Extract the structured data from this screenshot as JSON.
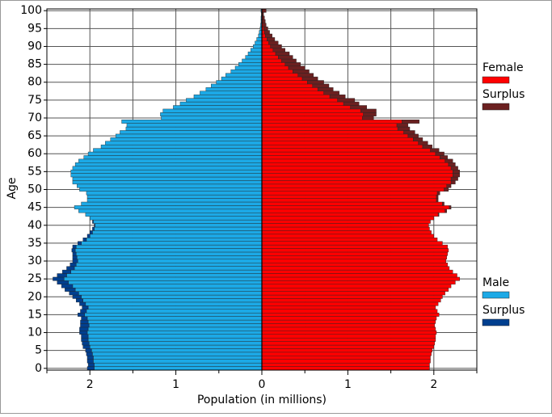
{
  "chart_data": {
    "type": "pyramid",
    "x_label": "Population (in millions)",
    "y_label": "Age",
    "stacked": true,
    "grid": true,
    "xlim": [
      -2.5,
      2.5
    ],
    "xticks": [
      {
        "value": -2,
        "label": "2"
      },
      {
        "value": -1,
        "label": "1"
      },
      0,
      1,
      2
    ],
    "x_minor_ticks": [
      -2.5,
      -1.5,
      -0.5,
      0.5,
      1.5,
      2.5
    ],
    "ylim": [
      -0.5,
      100.5
    ],
    "yticks": [
      0,
      5,
      10,
      15,
      20,
      25,
      30,
      35,
      40,
      45,
      50,
      55,
      60,
      65,
      70,
      75,
      80,
      85,
      90,
      95,
      100
    ],
    "y": [
      0,
      1,
      2,
      3,
      4,
      5,
      6,
      7,
      8,
      9,
      10,
      11,
      12,
      13,
      14,
      15,
      16,
      17,
      18,
      19,
      20,
      21,
      22,
      23,
      24,
      25,
      26,
      27,
      28,
      29,
      30,
      31,
      32,
      33,
      34,
      35,
      36,
      37,
      38,
      39,
      40,
      41,
      42,
      43,
      44,
      45,
      46,
      47,
      48,
      49,
      50,
      51,
      52,
      53,
      54,
      55,
      56,
      57,
      58,
      59,
      60,
      61,
      62,
      63,
      64,
      65,
      66,
      67,
      68,
      69,
      70,
      71,
      72,
      73,
      74,
      75,
      76,
      77,
      78,
      79,
      80,
      81,
      82,
      83,
      84,
      85,
      86,
      87,
      88,
      89,
      90,
      91,
      92,
      93,
      94,
      95,
      96,
      97,
      98,
      99,
      100
    ],
    "series": [
      {
        "name": "Female",
        "color": "#ff0000",
        "values": [
          1.95,
          1.95,
          1.96,
          1.96,
          1.97,
          1.98,
          2.0,
          2.01,
          2.02,
          2.02,
          2.03,
          2.02,
          2.01,
          2.02,
          2.03,
          2.06,
          2.04,
          2.02,
          2.05,
          2.08,
          2.1,
          2.13,
          2.17,
          2.2,
          2.25,
          2.3,
          2.27,
          2.22,
          2.18,
          2.16,
          2.14,
          2.15,
          2.16,
          2.17,
          2.16,
          2.1,
          2.04,
          2.0,
          1.97,
          1.95,
          1.94,
          1.96,
          2.0,
          2.05,
          2.13,
          2.18,
          2.1,
          2.03,
          2.03,
          2.04,
          2.12,
          2.15,
          2.2,
          2.2,
          2.22,
          2.22,
          2.2,
          2.17,
          2.13,
          2.07,
          2.02,
          1.96,
          1.87,
          1.82,
          1.76,
          1.7,
          1.65,
          1.58,
          1.57,
          1.63,
          1.17,
          1.18,
          1.15,
          1.03,
          0.95,
          0.88,
          0.79,
          0.72,
          0.65,
          0.59,
          0.53,
          0.47,
          0.42,
          0.36,
          0.31,
          0.27,
          0.23,
          0.19,
          0.16,
          0.13,
          0.1,
          0.08,
          0.06,
          0.04,
          0.03,
          0.02,
          0.015,
          0.01,
          0.01,
          0.005,
          0.01
        ]
      },
      {
        "name": "Surplus",
        "color": "#6b2020",
        "values": [
          0,
          0,
          0,
          0,
          0,
          0,
          0,
          0,
          0,
          0,
          0,
          0,
          0,
          0,
          0,
          0,
          0,
          0,
          0,
          0,
          0,
          0,
          0,
          0,
          0,
          0,
          0,
          0,
          0,
          0,
          0,
          0,
          0,
          0,
          0,
          0,
          0,
          0,
          0,
          0,
          0,
          0,
          0,
          0.01,
          0.02,
          0.02,
          0.02,
          0.02,
          0.02,
          0.03,
          0.05,
          0.05,
          0.05,
          0.08,
          0.08,
          0.08,
          0.08,
          0.08,
          0.09,
          0.09,
          0.1,
          0.1,
          0.11,
          0.11,
          0.11,
          0.12,
          0.13,
          0.14,
          0.13,
          0.2,
          0.13,
          0.15,
          0.18,
          0.19,
          0.18,
          0.2,
          0.18,
          0.18,
          0.18,
          0.19,
          0.19,
          0.18,
          0.18,
          0.19,
          0.19,
          0.18,
          0.17,
          0.17,
          0.16,
          0.14,
          0.13,
          0.11,
          0.09,
          0.08,
          0.06,
          0.05,
          0.035,
          0.03,
          0.02,
          0.015,
          0.04
        ]
      },
      {
        "name": "Male",
        "color": "#1ca9e6",
        "values": [
          -1.95,
          -1.95,
          -1.96,
          -1.96,
          -1.97,
          -1.98,
          -2.0,
          -2.01,
          -2.02,
          -2.02,
          -2.03,
          -2.02,
          -2.01,
          -2.02,
          -2.03,
          -2.06,
          -2.04,
          -2.02,
          -2.05,
          -2.08,
          -2.1,
          -2.13,
          -2.17,
          -2.2,
          -2.25,
          -2.3,
          -2.27,
          -2.22,
          -2.18,
          -2.16,
          -2.14,
          -2.15,
          -2.16,
          -2.17,
          -2.16,
          -2.1,
          -2.04,
          -2.0,
          -1.97,
          -1.95,
          -1.94,
          -1.96,
          -2.0,
          -2.05,
          -2.13,
          -2.18,
          -2.1,
          -2.03,
          -2.03,
          -2.04,
          -2.12,
          -2.15,
          -2.2,
          -2.2,
          -2.22,
          -2.22,
          -2.2,
          -2.17,
          -2.13,
          -2.07,
          -2.02,
          -1.96,
          -1.87,
          -1.82,
          -1.76,
          -1.7,
          -1.65,
          -1.58,
          -1.57,
          -1.63,
          -1.17,
          -1.18,
          -1.15,
          -1.03,
          -0.95,
          -0.88,
          -0.79,
          -0.72,
          -0.65,
          -0.59,
          -0.53,
          -0.47,
          -0.42,
          -0.36,
          -0.31,
          -0.27,
          -0.23,
          -0.19,
          -0.16,
          -0.13,
          -0.1,
          -0.08,
          -0.06,
          -0.04,
          -0.03,
          -0.02,
          -0.015,
          -0.01,
          -0.01,
          -0.005,
          -0.01
        ]
      },
      {
        "name": "Surplus",
        "color": "#003f8f",
        "values": [
          -0.08,
          -0.07,
          -0.07,
          -0.07,
          -0.07,
          -0.07,
          -0.08,
          -0.08,
          -0.08,
          -0.08,
          -0.09,
          -0.1,
          -0.1,
          -0.09,
          -0.07,
          -0.08,
          -0.07,
          -0.07,
          -0.07,
          -0.08,
          -0.1,
          -0.11,
          -0.12,
          -0.13,
          -0.13,
          -0.13,
          -0.11,
          -0.1,
          -0.09,
          -0.07,
          -0.06,
          -0.05,
          -0.04,
          -0.04,
          -0.04,
          -0.04,
          -0.04,
          -0.03,
          -0.03,
          -0.02,
          -0.01,
          -0.01,
          0,
          0,
          0,
          0,
          0,
          0,
          0,
          0,
          0,
          0,
          0,
          0,
          0,
          0,
          0,
          0,
          0,
          0,
          0,
          0,
          0,
          0,
          0,
          0,
          0,
          0,
          0,
          0,
          0,
          0,
          0,
          0,
          0,
          0,
          0,
          0,
          0,
          0,
          0,
          0,
          0,
          0,
          0,
          0,
          0,
          0,
          0,
          0,
          0,
          0,
          0,
          0,
          0,
          0,
          0,
          0,
          0,
          0,
          0
        ]
      }
    ]
  }
}
